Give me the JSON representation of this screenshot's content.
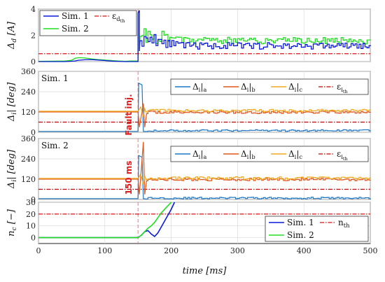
{
  "chart_data": [
    {
      "type": "line",
      "xlim": [
        0,
        500
      ],
      "ylim": [
        0,
        4
      ],
      "yticks": [
        0,
        2,
        4
      ],
      "ylabel": "Δd [A]",
      "grid": true,
      "legend_position": "top-left",
      "series": [
        {
          "name": "Sim. 1",
          "color": "#0a1adb",
          "x": [
            0,
            40,
            55,
            60,
            70,
            80,
            90,
            100,
            110,
            120,
            130,
            140,
            150
          ],
          "y": [
            0,
            0,
            0.05,
            0.1,
            0.14,
            0.15,
            0.12,
            0.08,
            0.04,
            0.02,
            0,
            0,
            0
          ]
        },
        {
          "name": "Sim. 2",
          "color": "#22dd22",
          "x": [
            0,
            40,
            50,
            55,
            60,
            70,
            80,
            90,
            100,
            110,
            120,
            130,
            140,
            150
          ],
          "y": [
            0.02,
            0.05,
            0.1,
            0.25,
            0.3,
            0.28,
            0.2,
            0.15,
            0.12,
            0.08,
            0.05,
            0.02,
            0.05,
            0.04
          ]
        },
        {
          "name": "ε_d_th",
          "color": "#dd1111",
          "style": "dashdot",
          "value": 0.6
        }
      ]
    },
    {
      "type": "line",
      "xlim": [
        0,
        500
      ],
      "ylim": [
        0,
        360
      ],
      "yticks": [
        0,
        120,
        240,
        360
      ],
      "ylabel": "Δi| [deg]",
      "panel_label": "Sim. 1",
      "annotation": "Fault inj.",
      "grid": true,
      "legend_position": "top-right",
      "series": [
        {
          "name": "Δi|a",
          "color": "#1f77c4",
          "pre": 5,
          "post": 10
        },
        {
          "name": "Δi|b",
          "color": "#e0561c",
          "pre": 120,
          "post": 118
        },
        {
          "name": "Δi|c",
          "color": "#f0a81e",
          "pre": 124,
          "post": 128
        },
        {
          "name": "ε_i_th",
          "color": "#c00000",
          "style": "dashdot",
          "value": 60
        }
      ]
    },
    {
      "type": "line",
      "xlim": [
        0,
        500
      ],
      "ylim": [
        0,
        360
      ],
      "yticks": [
        0,
        120,
        240,
        360
      ],
      "ylabel": "Δi| [deg]",
      "panel_label": "Sim. 2",
      "annotation": "150 ms",
      "grid": true,
      "legend_position": "top-right",
      "series": [
        {
          "name": "Δi|a",
          "color": "#1f77c4",
          "pre": 5,
          "post": 8
        },
        {
          "name": "Δi|b",
          "color": "#e0561c",
          "pre": 120,
          "post": 118
        },
        {
          "name": "Δi|c",
          "color": "#f0a81e",
          "pre": 124,
          "post": 126
        },
        {
          "name": "ε_i_th",
          "color": "#c00000",
          "style": "dashdot",
          "value": 60
        }
      ]
    },
    {
      "type": "line",
      "xlim": [
        0,
        500
      ],
      "ylim": [
        -5,
        30
      ],
      "yticks": [
        0,
        10,
        20,
        30
      ],
      "ylabel": "nc [−]",
      "xlabel": "time [ms]",
      "xticks": [
        0,
        100,
        200,
        300,
        400,
        500
      ],
      "grid": true,
      "legend_position": "bottom-right",
      "series": [
        {
          "name": "Sim. 1",
          "color": "#0a1adb",
          "x": [
            0,
            150,
            155,
            160,
            165,
            170,
            175,
            180,
            185,
            190,
            195,
            200,
            205
          ],
          "y": [
            0,
            0,
            2,
            5,
            6,
            3,
            1,
            4,
            9,
            14,
            19,
            24,
            30
          ]
        },
        {
          "name": "Sim. 2",
          "color": "#22dd22",
          "x": [
            0,
            150,
            155,
            160,
            165,
            170,
            175,
            180,
            185,
            190,
            195,
            200
          ],
          "y": [
            0,
            0,
            2,
            5,
            8,
            10,
            13,
            17,
            21,
            24,
            27,
            30
          ]
        },
        {
          "name": "n_th",
          "color": "#dd1111",
          "style": "dashdot",
          "value": 20
        }
      ]
    }
  ],
  "fault_time_ms": 150
}
